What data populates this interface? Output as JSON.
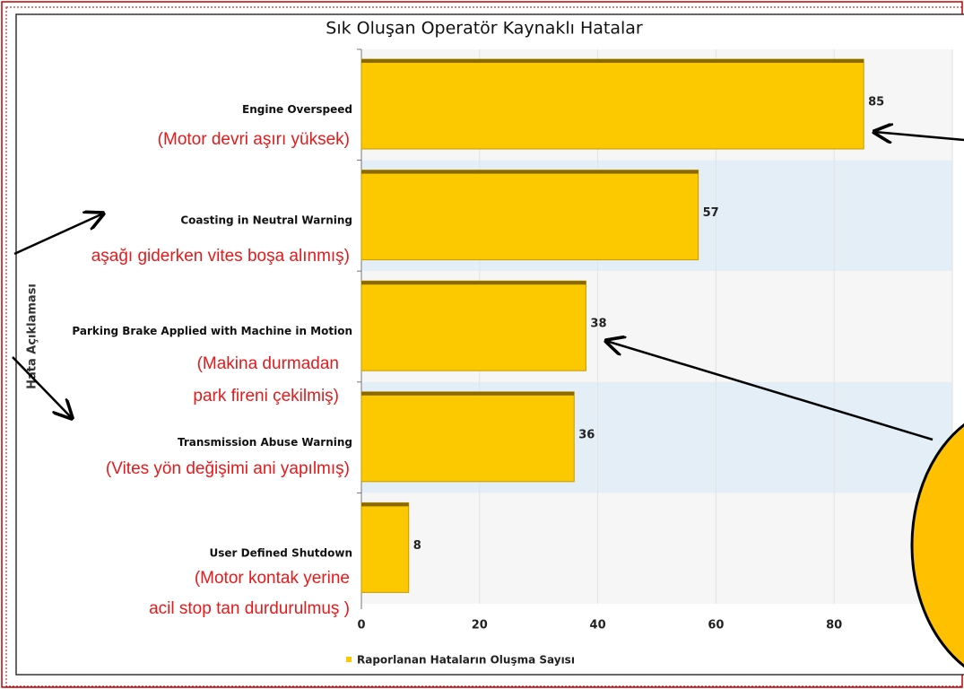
{
  "chart_data": {
    "type": "bar",
    "orientation": "horizontal",
    "title": "Sık Oluşan Operatör Kaynaklı Hatalar",
    "y_label": "Hata Açıklaması",
    "categories": [
      "Engine Overspeed",
      "Coasting in Neutral Warning",
      "Parking Brake Applied with Machine in Motion",
      "Transmission Abuse Warning",
      "User Defined Shutdown"
    ],
    "series": [
      {
        "name": "Raporlanan Hataların Oluşma Sayısı",
        "color": "#fcc800",
        "values": [
          85,
          57,
          38,
          36,
          8
        ]
      }
    ],
    "xlim": [
      0,
      100
    ],
    "xticks": [
      0,
      20,
      40,
      60,
      80,
      100
    ],
    "grid": true,
    "legend": "bottom"
  },
  "annotations": [
    {
      "lines": [
        "(Motor devri aşırı yüksek)"
      ]
    },
    {
      "lines": [
        "aşağı giderken vites boşa alınmış)"
      ]
    },
    {
      "lines": [
        "(Makina durmadan",
        "park fireni çekilmiş)"
      ]
    },
    {
      "lines": [
        "(Vites yön değişimi ani yapılmış)"
      ]
    },
    {
      "lines": [
        "(Motor kontak yerine",
        "acil stop tan durdurulmuş )"
      ]
    }
  ]
}
